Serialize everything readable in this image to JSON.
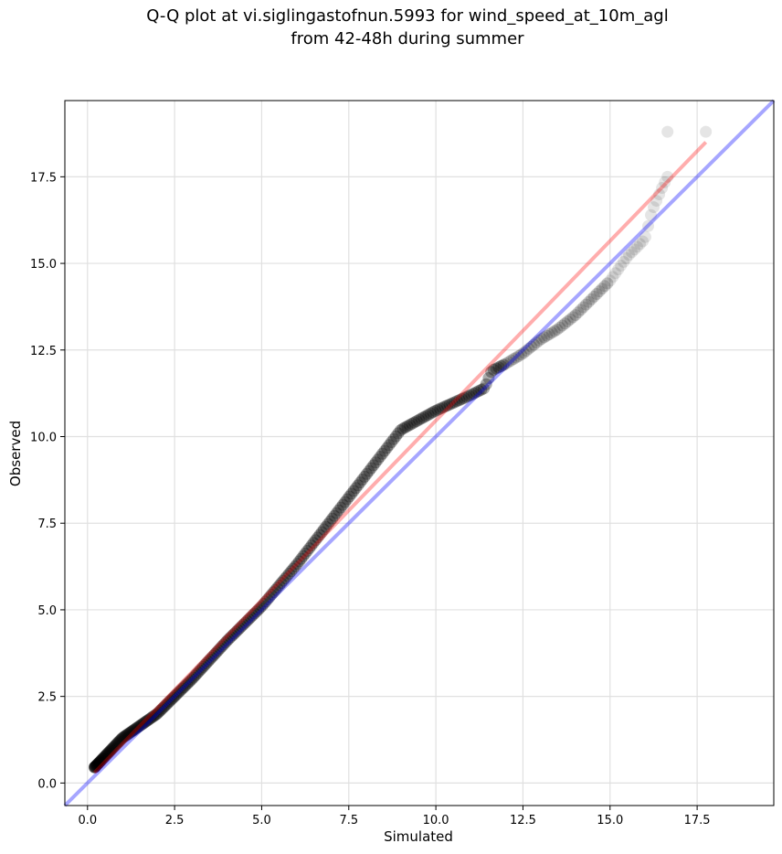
{
  "chart_data": {
    "type": "scatter",
    "title_line1": "Q-Q plot at vi.siglingastofnun.5993 for wind_speed_at_10m_agl",
    "title_line2": "from 42-48h during summer",
    "xlabel": "Simulated",
    "ylabel": "Observed",
    "xlim": [
      -0.65,
      19.7
    ],
    "ylim": [
      -0.65,
      19.7
    ],
    "xticks": [
      0.0,
      2.5,
      5.0,
      7.5,
      10.0,
      12.5,
      15.0,
      17.5
    ],
    "xtick_labels": [
      "0.0",
      "2.5",
      "5.0",
      "7.5",
      "10.0",
      "12.5",
      "15.0",
      "17.5"
    ],
    "yticks": [
      0.0,
      2.5,
      5.0,
      7.5,
      10.0,
      12.5,
      15.0,
      17.5
    ],
    "ytick_labels": [
      "0.0",
      "2.5",
      "5.0",
      "7.5",
      "10.0",
      "12.5",
      "15.0",
      "17.5"
    ],
    "grid": true,
    "colors": {
      "points": "#000000",
      "identity_line": "#0000ff",
      "fit_line": "#ff0000",
      "grid": "#e0e0e0"
    },
    "identity_line": {
      "x": [
        -0.65,
        19.7
      ],
      "y": [
        -0.65,
        19.7
      ]
    },
    "fit_line": {
      "x": [
        0.2,
        17.75
      ],
      "y": [
        0.3,
        18.5
      ]
    },
    "knots": [
      [
        0.2,
        0.45
      ],
      [
        1.0,
        1.3
      ],
      [
        2.0,
        2.0
      ],
      [
        3.0,
        3.0
      ],
      [
        4.0,
        4.1
      ],
      [
        5.0,
        5.1
      ],
      [
        6.0,
        6.3
      ],
      [
        7.0,
        7.6
      ],
      [
        8.0,
        8.9
      ],
      [
        9.0,
        10.2
      ],
      [
        10.0,
        10.75
      ],
      [
        11.0,
        11.2
      ],
      [
        11.4,
        11.4
      ],
      [
        11.6,
        11.9
      ],
      [
        12.0,
        12.1
      ],
      [
        12.5,
        12.4
      ],
      [
        13.0,
        12.8
      ],
      [
        13.5,
        13.1
      ],
      [
        14.0,
        13.5
      ],
      [
        15.0,
        14.5
      ],
      [
        15.5,
        15.2
      ],
      [
        16.0,
        15.7
      ],
      [
        16.2,
        16.5
      ],
      [
        16.5,
        17.2
      ],
      [
        16.65,
        17.5
      ]
    ],
    "n_points": 300,
    "tail_points": [
      [
        16.65,
        18.8
      ],
      [
        17.75,
        18.8
      ]
    ]
  }
}
